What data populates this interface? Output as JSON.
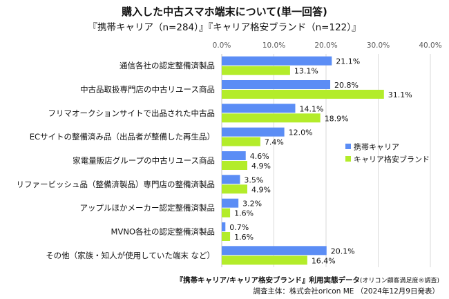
{
  "title": "購入した中古スマホ端末について(単一回答)",
  "subtitle": "『携帯キャリア（n=284）』『キャリア格安ブランド（n=122）』",
  "footer": {
    "line1_main": "『携帯キャリア/キャリア格安ブランド』利用実態データ",
    "line1_note": "(オリコン顧客満足度®調査)",
    "line2": "調査主体：株式会社oricon ME （2024年12月9日発表）"
  },
  "chart_data": {
    "type": "bar",
    "orientation": "horizontal",
    "categories": [
      "通信各社の認定整備済製品",
      "中古品取扱専門店の中古リユース商品",
      "フリマオークションサイトで出品された中古品",
      "ECサイトの整備済み品（出品者が整備した再生品）",
      "家電量販店グループの中古リユース商品",
      "リファービッシュ品（整備済製品）専門店の整備済製品",
      "アップルほかメーカー認定整備済製品",
      "MVNO各社の認定整備済製品",
      "その他（家族・知人が使用していた端末 など）"
    ],
    "series": [
      {
        "name": "携帯キャリア",
        "color": "#5B8DF5",
        "values": [
          21.1,
          20.8,
          14.1,
          12.0,
          4.6,
          3.5,
          3.2,
          0.7,
          20.1
        ],
        "labels": [
          "21.1%",
          "20.8%",
          "14.1%",
          "12.0%",
          "4.6%",
          "3.5%",
          "3.2%",
          "0.7%",
          "20.1%"
        ]
      },
      {
        "name": "キャリア格安ブランド",
        "color": "#B3EC2A",
        "values": [
          13.1,
          31.1,
          18.9,
          7.4,
          4.9,
          4.9,
          1.6,
          1.6,
          16.4
        ],
        "labels": [
          "13.1%",
          "31.1%",
          "18.9%",
          "7.4%",
          "4.9%",
          "4.9%",
          "1.6%",
          "1.6%",
          "16.4%"
        ]
      }
    ],
    "xlim": [
      0,
      40
    ],
    "xticks": [
      "0.0%",
      "10.0%",
      "20.0%",
      "30.0%",
      "40.0%"
    ],
    "grid": true,
    "legend_position": "right"
  }
}
